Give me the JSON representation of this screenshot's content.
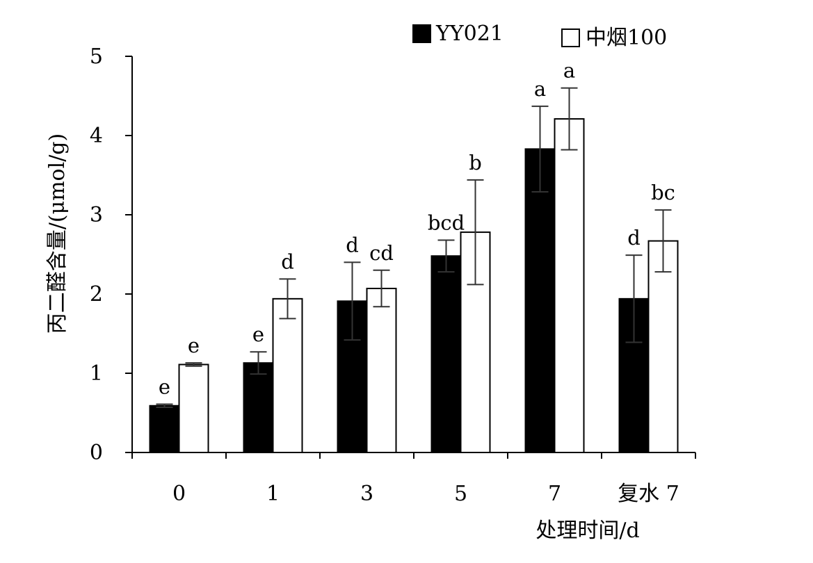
{
  "chart_data": {
    "type": "bar",
    "title": "",
    "xlabel": "处理时间/d",
    "ylabel": "丙二醛含量/(μmol/g)",
    "ylim": [
      0,
      5
    ],
    "yticks": [
      "0",
      "1",
      "2",
      "3",
      "4",
      "5"
    ],
    "grid": false,
    "legend_position": "top",
    "categories": [
      "0",
      "1",
      "3",
      "5",
      "7",
      "复水 7"
    ],
    "series": [
      {
        "name": "YY021",
        "fill": "#000000",
        "values": [
          0.59,
          1.13,
          1.91,
          2.48,
          3.83,
          1.94
        ],
        "errors": [
          0.02,
          0.14,
          0.49,
          0.2,
          0.54,
          0.55
        ],
        "labels": [
          "e",
          "e",
          "d",
          "bcd",
          "a",
          "d"
        ]
      },
      {
        "name": "中烟100",
        "fill": "#ffffff",
        "values": [
          1.11,
          1.94,
          2.07,
          2.78,
          4.21,
          2.67
        ],
        "errors": [
          0.02,
          0.25,
          0.23,
          0.66,
          0.39,
          0.39
        ],
        "labels": [
          "e",
          "d",
          "cd",
          "b",
          "a",
          "bc"
        ]
      }
    ]
  }
}
